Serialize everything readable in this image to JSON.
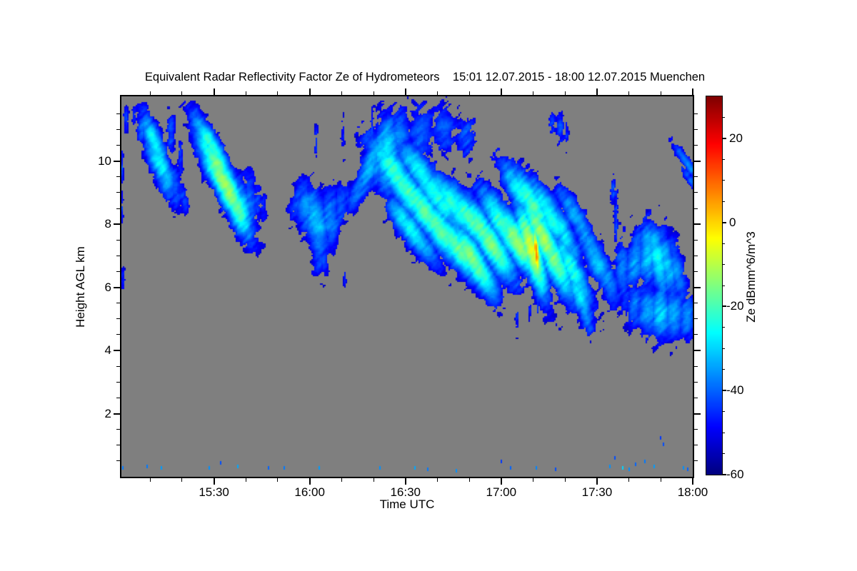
{
  "title": "Equivalent Radar Reflectivity Factor Ze of Hydrometeors    15:01 12.07.2015 - 18:00 12.07.2015 Muenchen",
  "chart_data": {
    "type": "heatmap",
    "title": "Equivalent Radar Reflectivity Factor Ze of Hydrometeors    15:01 12.07.2015 - 18:00 12.07.2015 Muenchen",
    "station": "Muenchen",
    "date": "12.07.2015",
    "time_start": "15:01",
    "time_end": "18:00",
    "xlabel": "Time UTC",
    "ylabel": "Height AGL km",
    "colorbar_label": "Ze dBmm^6/m^3",
    "colormap": "jet",
    "no_signal_color": "#7f7f7f",
    "x_range_minutes_after_1500": [
      1,
      180
    ],
    "y_range_km": [
      0,
      12.05
    ],
    "ze_range_db": [
      -60,
      30
    ],
    "detection_threshold_db": -50,
    "x_ticks": [
      {
        "t": 30,
        "label": "15:30"
      },
      {
        "t": 60,
        "label": "16:00"
      },
      {
        "t": 90,
        "label": "16:30"
      },
      {
        "t": 120,
        "label": "17:00"
      },
      {
        "t": 150,
        "label": "17:30"
      },
      {
        "t": 180,
        "label": "18:00"
      }
    ],
    "x_minor_step_minutes": 10,
    "y_ticks": [
      {
        "h": 2,
        "label": "2"
      },
      {
        "h": 4,
        "label": "4"
      },
      {
        "h": 6,
        "label": "6"
      },
      {
        "h": 8,
        "label": "8"
      },
      {
        "h": 10,
        "label": "10"
      }
    ],
    "y_minor_step_km": 0.5,
    "colorbar_ticks": [
      {
        "v": 20,
        "label": "20"
      },
      {
        "v": 0,
        "label": "0"
      },
      {
        "v": -20,
        "label": "-20"
      },
      {
        "v": -40,
        "label": "-40"
      },
      {
        "v": -60,
        "label": "-60"
      }
    ],
    "colorbar_minor_step": 5,
    "blob_format": "[t_min_after_1500, height_km, peak_ze_db, sigma_t_min, sigma_h_km, tilt_deg]",
    "blobs": [
      [
        7.5,
        11.05,
        -40,
        1.2,
        0.4,
        0
      ],
      [
        10,
        10.85,
        -33,
        1.6,
        0.55,
        15
      ],
      [
        11.5,
        10.55,
        -25,
        1.8,
        0.65,
        20
      ],
      [
        13,
        9.95,
        -26,
        2.0,
        0.65,
        25
      ],
      [
        15,
        9.5,
        -32,
        2.0,
        0.55,
        15
      ],
      [
        17.5,
        9.2,
        -39,
        1.8,
        0.5,
        10
      ],
      [
        16.5,
        10.85,
        -42,
        1.0,
        0.5,
        0
      ],
      [
        19.5,
        10.1,
        -45,
        0.7,
        0.55,
        0
      ],
      [
        20,
        8.95,
        -43,
        1.2,
        0.45,
        15
      ],
      [
        26,
        11.15,
        -38,
        1.5,
        0.5,
        25
      ],
      [
        28,
        10.7,
        -28,
        1.7,
        0.7,
        30
      ],
      [
        29.5,
        10.45,
        -21,
        1.8,
        0.75,
        30
      ],
      [
        31,
        9.9,
        -16,
        2.0,
        0.8,
        30
      ],
      [
        33,
        9.35,
        -11,
        2.2,
        0.85,
        30
      ],
      [
        35,
        8.95,
        -14,
        2.2,
        0.8,
        28
      ],
      [
        37,
        8.6,
        -18,
        2.2,
        0.75,
        20
      ],
      [
        39,
        8.45,
        -28,
        2.0,
        0.65,
        10
      ],
      [
        41,
        8.55,
        -38,
        1.8,
        0.75,
        0
      ],
      [
        43.5,
        8.8,
        -44,
        1.2,
        0.55,
        0
      ],
      [
        45.5,
        8.55,
        -47,
        0.8,
        0.4,
        0
      ],
      [
        62,
        10.6,
        -45,
        0.5,
        0.5,
        0
      ],
      [
        70.5,
        10.85,
        -46,
        0.5,
        0.45,
        0
      ],
      [
        79.5,
        10.95,
        -43,
        0.45,
        0.5,
        0
      ],
      [
        84,
        10.8,
        -44,
        0.4,
        0.4,
        0
      ],
      [
        56.5,
        8.85,
        -42,
        1.5,
        0.5,
        -15
      ],
      [
        59,
        8.5,
        -36,
        2.2,
        0.6,
        5
      ],
      [
        62,
        8.1,
        -31,
        2.5,
        0.75,
        10
      ],
      [
        63,
        7.35,
        -38,
        1.8,
        0.6,
        0
      ],
      [
        64.5,
        6.95,
        -43,
        1.2,
        0.45,
        0
      ],
      [
        66.5,
        8.2,
        -36,
        2.2,
        0.65,
        0
      ],
      [
        69.5,
        8.55,
        -41,
        1.8,
        0.55,
        -10
      ],
      [
        71.5,
        8.9,
        -45,
        1.2,
        0.45,
        0
      ],
      [
        71,
        6.3,
        -47,
        0.35,
        0.2,
        0
      ],
      [
        76.5,
        9.3,
        -37,
        1.8,
        0.7,
        -25
      ],
      [
        79,
        9.9,
        -32,
        2.0,
        0.85,
        -20
      ],
      [
        82,
        10.3,
        -33,
        2.0,
        0.8,
        -10
      ],
      [
        84.5,
        10.15,
        -28,
        2.5,
        0.9,
        0
      ],
      [
        88,
        10.8,
        -38,
        2.5,
        0.6,
        0
      ],
      [
        95,
        10.9,
        -40,
        3.0,
        0.6,
        0
      ],
      [
        102,
        11.0,
        -41,
        3.0,
        0.55,
        0
      ],
      [
        109,
        10.75,
        -42,
        2.5,
        0.5,
        0
      ],
      [
        87,
        9.6,
        -22,
        2.8,
        0.95,
        35
      ],
      [
        91,
        9.0,
        -20,
        2.8,
        1.0,
        35
      ],
      [
        92,
        7.8,
        -26,
        2.2,
        0.9,
        35
      ],
      [
        95,
        9.6,
        -26,
        2.5,
        0.9,
        35
      ],
      [
        96,
        8.4,
        -19,
        2.8,
        1.0,
        35
      ],
      [
        100,
        8.9,
        -24,
        2.8,
        1.0,
        35
      ],
      [
        101,
        7.8,
        -18,
        2.8,
        1.0,
        35
      ],
      [
        105,
        8.6,
        -23,
        2.5,
        0.95,
        35
      ],
      [
        106,
        7.3,
        -17,
        2.6,
        0.95,
        35
      ],
      [
        110,
        8.2,
        -20,
        2.5,
        0.9,
        35
      ],
      [
        111,
        6.9,
        -15,
        2.4,
        0.9,
        30
      ],
      [
        114,
        7.8,
        -19,
        2.5,
        0.9,
        30
      ],
      [
        117,
        7.35,
        -16,
        2.5,
        0.9,
        30
      ],
      [
        121,
        7.9,
        -20,
        2.5,
        0.95,
        30
      ],
      [
        125,
        7.45,
        -14,
        2.5,
        0.95,
        30
      ],
      [
        129.5,
        7.2,
        -7,
        2.0,
        1.0,
        15
      ],
      [
        131,
        7.1,
        6,
        0.7,
        0.55,
        5
      ],
      [
        133,
        7.6,
        -12,
        2.2,
        1.0,
        25
      ],
      [
        136,
        7.0,
        -16,
        2.5,
        1.0,
        25
      ],
      [
        130,
        8.6,
        -20,
        2.5,
        0.9,
        30
      ],
      [
        135,
        8.3,
        -24,
        2.5,
        0.9,
        30
      ],
      [
        126,
        9.0,
        -26,
        2.2,
        0.8,
        30
      ],
      [
        139,
        7.8,
        -28,
        2.2,
        0.9,
        25
      ],
      [
        142,
        6.6,
        -24,
        2.2,
        0.9,
        25
      ],
      [
        144,
        5.9,
        -28,
        1.8,
        0.8,
        20
      ],
      [
        146,
        5.3,
        -34,
        1.4,
        0.6,
        15
      ],
      [
        147.5,
        4.95,
        -41,
        1.0,
        0.45,
        0
      ],
      [
        143,
        8.3,
        -34,
        2.0,
        0.75,
        30
      ],
      [
        147,
        7.5,
        -36,
        2.0,
        0.8,
        30
      ],
      [
        150,
        6.8,
        -32,
        2.2,
        0.8,
        25
      ],
      [
        153,
        6.3,
        -36,
        2.0,
        0.7,
        20
      ],
      [
        155,
        9.1,
        -42,
        0.7,
        0.35,
        0
      ],
      [
        156,
        8.2,
        -44,
        0.5,
        0.8,
        0
      ],
      [
        158,
        6.6,
        -38,
        1.8,
        0.7,
        0
      ],
      [
        162,
        6.9,
        -34,
        2.0,
        0.7,
        -10
      ],
      [
        166,
        7.1,
        -30,
        2.2,
        0.7,
        0
      ],
      [
        169,
        6.9,
        -26,
        2.0,
        0.8,
        10
      ],
      [
        172,
        6.7,
        -32,
        2.0,
        0.8,
        10
      ],
      [
        175,
        6.5,
        -36,
        1.8,
        0.8,
        10
      ],
      [
        178.5,
        9.9,
        -38,
        1.0,
        0.6,
        35
      ],
      [
        180,
        9.3,
        -41,
        0.9,
        0.6,
        35
      ],
      [
        159,
        5.6,
        -43,
        1.5,
        0.45,
        0
      ],
      [
        162,
        5.4,
        -38,
        2.0,
        0.5,
        0
      ],
      [
        166,
        5.3,
        -33,
        2.5,
        0.55,
        0
      ],
      [
        170,
        5.2,
        -30,
        2.5,
        0.55,
        0
      ],
      [
        174,
        5.2,
        -33,
        2.5,
        0.55,
        0
      ],
      [
        178,
        5.1,
        -36,
        2.0,
        0.5,
        0
      ],
      [
        125,
        5.05,
        -45,
        0.4,
        0.3,
        0
      ],
      [
        129,
        5.3,
        -46,
        0.3,
        0.25,
        0
      ],
      [
        131.5,
        5.45,
        -44,
        0.3,
        0.3,
        0
      ],
      [
        136,
        11.2,
        -44,
        0.8,
        0.3,
        0
      ],
      [
        138.5,
        11.05,
        -42,
        1.0,
        0.35,
        0
      ],
      [
        140.5,
        10.9,
        -45,
        0.5,
        0.3,
        0
      ],
      [
        1,
        9.8,
        -42,
        0.5,
        0.35,
        0
      ],
      [
        1,
        8.6,
        -45,
        0.4,
        0.4,
        0
      ],
      [
        1.5,
        6.2,
        -45,
        0.5,
        0.3,
        0
      ],
      [
        2.5,
        11.3,
        -44,
        0.6,
        0.3,
        0
      ],
      [
        5,
        11.4,
        -46,
        0.5,
        0.25,
        0
      ]
    ],
    "speck_format": "[t_min_after_1500, height_km, ze_db]",
    "specks": [
      [
        1.5,
        0.3,
        -38
      ],
      [
        9,
        0.35,
        -38
      ],
      [
        13.5,
        0.3,
        -35
      ],
      [
        28.5,
        0.3,
        -36
      ],
      [
        32,
        0.45,
        -42
      ],
      [
        37.5,
        0.35,
        -34
      ],
      [
        47,
        0.3,
        -40
      ],
      [
        52,
        0.3,
        -38
      ],
      [
        63,
        0.3,
        -35
      ],
      [
        82,
        0.3,
        -36
      ],
      [
        93,
        0.3,
        -34
      ],
      [
        97,
        0.25,
        -38
      ],
      [
        106,
        0.2,
        -36
      ],
      [
        120,
        0.5,
        -44
      ],
      [
        123,
        0.3,
        -40
      ],
      [
        131,
        0.3,
        -37
      ],
      [
        137,
        0.25,
        -42
      ],
      [
        154,
        0.35,
        -36
      ],
      [
        155.5,
        0.6,
        -42
      ],
      [
        158,
        0.3,
        -30
      ],
      [
        160,
        0.25,
        -36
      ],
      [
        162,
        0.4,
        -40
      ],
      [
        165,
        0.5,
        -38
      ],
      [
        168,
        0.35,
        -35
      ],
      [
        170,
        1.25,
        -44
      ],
      [
        170.8,
        1.05,
        -42
      ],
      [
        177,
        0.3,
        -36
      ],
      [
        178.5,
        0.25,
        -40
      ]
    ]
  }
}
